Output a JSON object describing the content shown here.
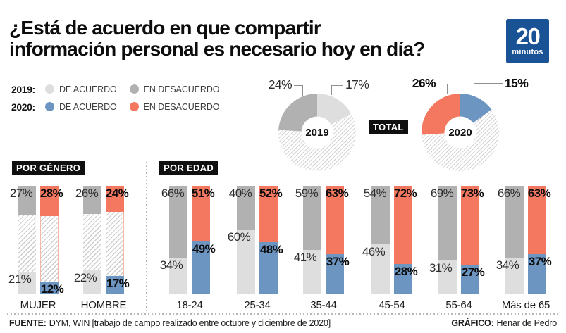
{
  "header": {
    "title_line1": "¿Está de acuerdo en que compartir",
    "title_line2": "información personal es necesario hoy en día?",
    "logo_number": "20",
    "logo_word": "minutos"
  },
  "legend": {
    "rows": [
      {
        "year": "2019:",
        "items": [
          {
            "label": "DE ACUERDO",
            "color": "#dedede"
          },
          {
            "label": "EN DESACUERDO",
            "color": "#b1b1b1"
          }
        ]
      },
      {
        "year": "2020:",
        "items": [
          {
            "label": "DE ACUERDO",
            "color": "#6c95c2"
          },
          {
            "label": "EN DESACUERDO",
            "color": "#f4785f"
          }
        ]
      }
    ]
  },
  "total_label": "TOTAL",
  "colors": {
    "logo_blue": "#1a5296",
    "label_box": "#101010",
    "orange": "#f4785f",
    "blue": "#6c95c2",
    "gray_dark": "#b1b1b1",
    "gray_light": "#dedede"
  },
  "footer": {
    "source_label": "FUENTE:",
    "source_text": "DYM, WIN [trabajo de campo realizado entre octubre y diciembre de 2020]",
    "credit_label": "GRÁFICO:",
    "credit_text": "Henar de Pedro"
  },
  "chart_data": [
    {
      "type": "pie",
      "variant": "donut_with_hatched_remainder",
      "label": "2019",
      "values": {
        "de_acuerdo": 17,
        "en_desacuerdo": 24
      },
      "colors": {
        "de_acuerdo": "#dedede",
        "en_desacuerdo": "#b1b1b1"
      }
    },
    {
      "type": "pie",
      "variant": "donut_with_hatched_remainder",
      "label": "2020",
      "values": {
        "de_acuerdo": 15,
        "en_desacuerdo": 26
      },
      "colors": {
        "de_acuerdo": "#6c95c2",
        "en_desacuerdo": "#f4785f"
      }
    },
    {
      "type": "bar",
      "section_label": "POR GÉNERO",
      "unit": "%",
      "stacked": true,
      "groups": [
        {
          "category": "MUJER",
          "y2019": {
            "en_desacuerdo": 27,
            "de_acuerdo": 21
          },
          "y2020": {
            "en_desacuerdo": 28,
            "de_acuerdo": 12
          }
        },
        {
          "category": "HOMBRE",
          "y2019": {
            "en_desacuerdo": 26,
            "de_acuerdo": 22
          },
          "y2020": {
            "en_desacuerdo": 24,
            "de_acuerdo": 17
          }
        }
      ]
    },
    {
      "type": "bar",
      "section_label": "POR EDAD",
      "unit": "%",
      "stacked": true,
      "groups": [
        {
          "category": "18-24",
          "y2019": {
            "en_desacuerdo": 66,
            "de_acuerdo": 34
          },
          "y2020": {
            "en_desacuerdo": 51,
            "de_acuerdo": 49
          }
        },
        {
          "category": "25-34",
          "y2019": {
            "en_desacuerdo": 40,
            "de_acuerdo": 60
          },
          "y2020": {
            "en_desacuerdo": 52,
            "de_acuerdo": 48
          }
        },
        {
          "category": "35-44",
          "y2019": {
            "en_desacuerdo": 59,
            "de_acuerdo": 41
          },
          "y2020": {
            "en_desacuerdo": 63,
            "de_acuerdo": 37
          }
        },
        {
          "category": "45-54",
          "y2019": {
            "en_desacuerdo": 54,
            "de_acuerdo": 46
          },
          "y2020": {
            "en_desacuerdo": 72,
            "de_acuerdo": 28
          }
        },
        {
          "category": "55-64",
          "y2019": {
            "en_desacuerdo": 69,
            "de_acuerdo": 31
          },
          "y2020": {
            "en_desacuerdo": 73,
            "de_acuerdo": 27
          }
        },
        {
          "category": "Más de 65",
          "y2019": {
            "en_desacuerdo": 66,
            "de_acuerdo": 34
          },
          "y2020": {
            "en_desacuerdo": 63,
            "de_acuerdo": 37
          }
        }
      ]
    }
  ]
}
